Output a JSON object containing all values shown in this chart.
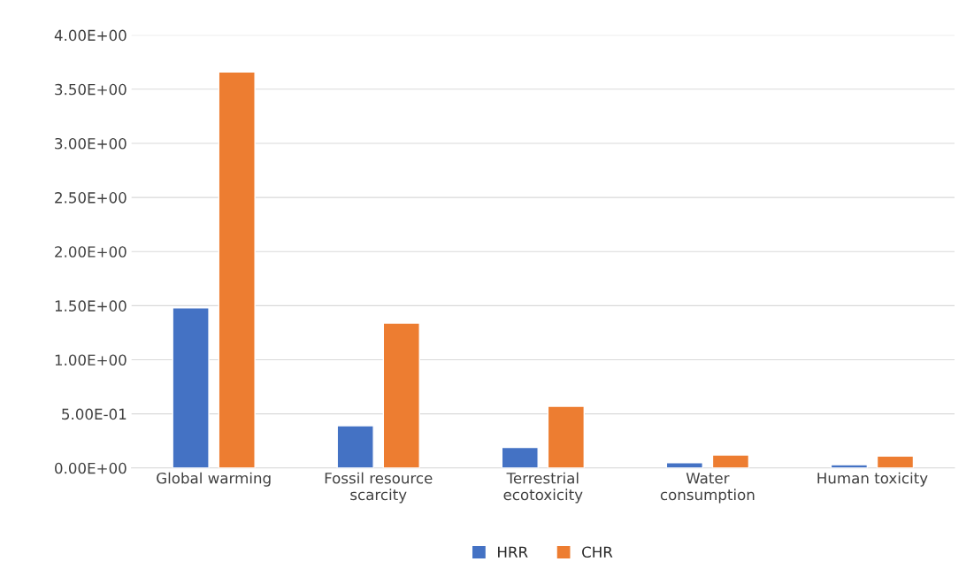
{
  "chart_data": {
    "type": "bar",
    "categories": [
      "Global warming",
      "Fossil resource\nscarcity",
      "Terrestrial\necotoxicity",
      "Water\nconsumption",
      "Human toxicity"
    ],
    "series": [
      {
        "name": "HRR",
        "color": "#4472c4",
        "values": [
          1.48,
          0.39,
          0.19,
          0.05,
          0.03
        ]
      },
      {
        "name": "CHR",
        "color": "#ed7d31",
        "values": [
          3.66,
          1.34,
          0.57,
          0.12,
          0.11
        ]
      }
    ],
    "ylim": [
      0,
      4
    ],
    "yticks": [
      {
        "value": 0,
        "label": "0.00E+00"
      },
      {
        "value": 0.5,
        "label": "5.00E-01"
      },
      {
        "value": 1,
        "label": "1.00E+00"
      },
      {
        "value": 1.5,
        "label": "1.50E+00"
      },
      {
        "value": 2,
        "label": "2.00E+00"
      },
      {
        "value": 2.5,
        "label": "2.50E+00"
      },
      {
        "value": 3,
        "label": "3.00E+00"
      },
      {
        "value": 3.5,
        "label": "3.50E+00"
      },
      {
        "value": 4,
        "label": "4.00E+00"
      }
    ],
    "grid": "y",
    "legend": "bottom"
  }
}
